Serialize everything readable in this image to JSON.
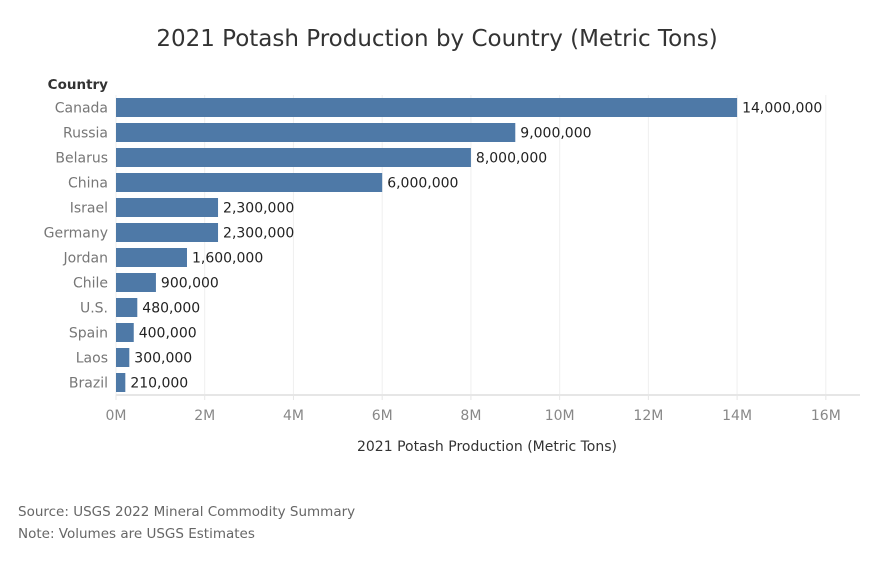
{
  "chart_data": {
    "type": "bar",
    "orientation": "horizontal",
    "title": "2021 Potash Production by Country (Metric Tons)",
    "ylabel": "Country",
    "xlabel": "2021 Potash Production (Metric Tons)",
    "categories": [
      "Canada",
      "Russia",
      "Belarus",
      "China",
      "Israel",
      "Germany",
      "Jordan",
      "Chile",
      "U.S.",
      "Spain",
      "Laos",
      "Brazil"
    ],
    "values": [
      14000000,
      9000000,
      8000000,
      6000000,
      2300000,
      2300000,
      1600000,
      900000,
      480000,
      400000,
      300000,
      210000
    ],
    "data_labels": [
      "14,000,000",
      "9,000,000",
      "8,000,000",
      "6,000,000",
      "2,300,000",
      "2,300,000",
      "1,600,000",
      "900,000",
      "480,000",
      "400,000",
      "300,000",
      "210,000"
    ],
    "xticks": [
      0,
      2000000,
      4000000,
      6000000,
      8000000,
      10000000,
      12000000,
      14000000,
      16000000
    ],
    "xtick_labels": [
      "0M",
      "2M",
      "4M",
      "6M",
      "8M",
      "10M",
      "12M",
      "14M",
      "16M"
    ],
    "xlim": [
      0,
      16770000
    ],
    "grid": true,
    "bar_color": "#4e79a7"
  },
  "footer": {
    "source": "Source: USGS 2022 Mineral Commodity Summary",
    "note": "Note: Volumes are USGS Estimates"
  }
}
